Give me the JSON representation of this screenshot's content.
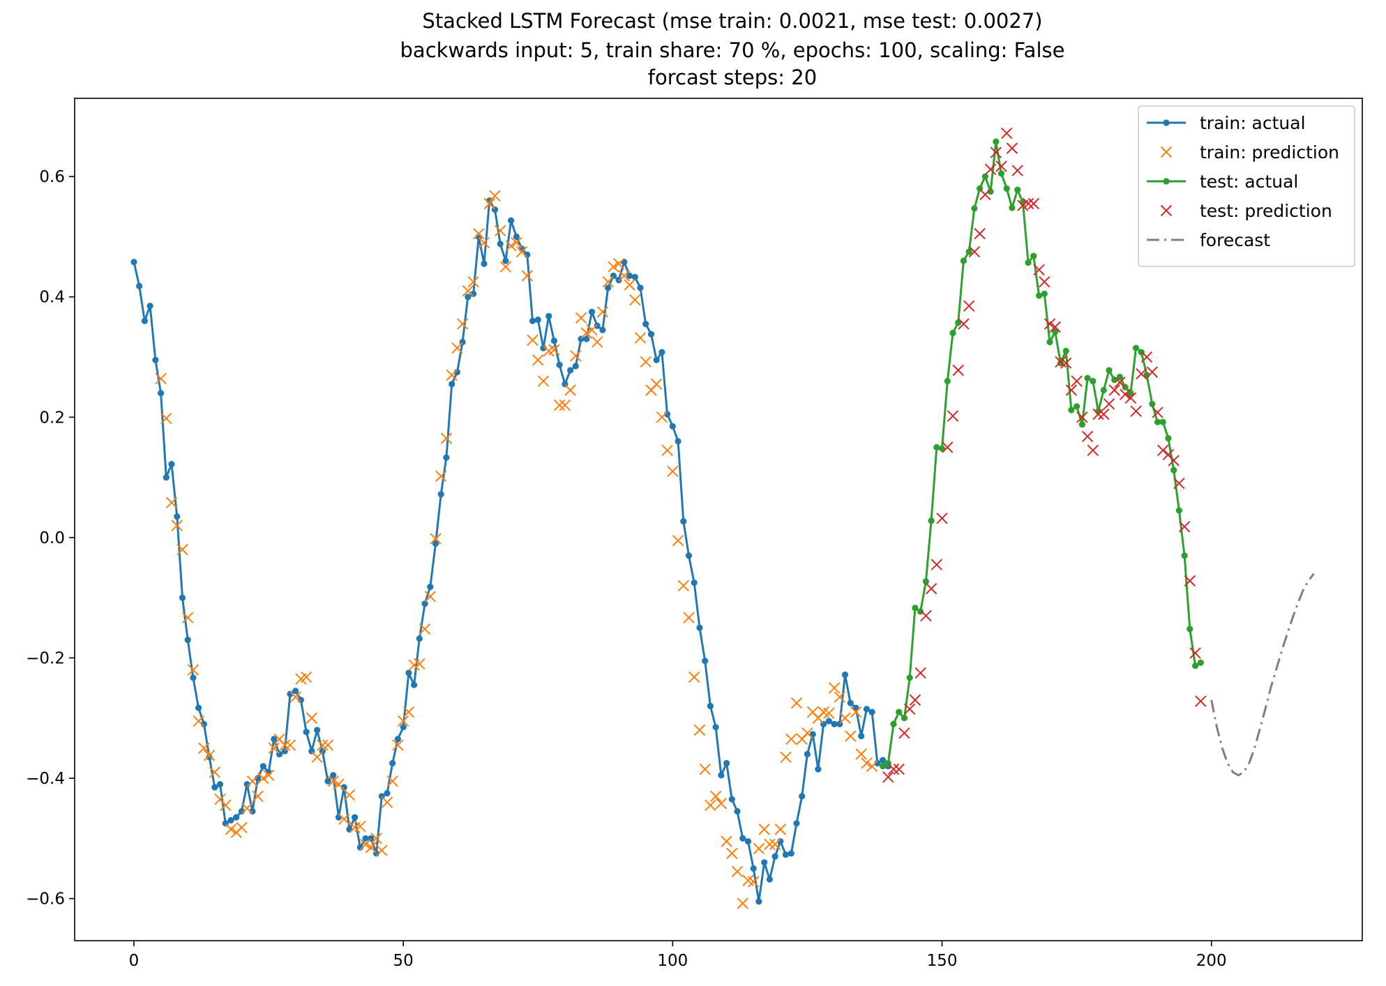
{
  "chart_data": {
    "type": "line",
    "title_lines": [
      "Stacked LSTM Forecast (mse train: 0.0021, mse test: 0.0027)",
      "backwards input: 5, train share: 70 %, epochs: 100, scaling: False",
      "forcast steps: 20"
    ],
    "xlabel": "",
    "ylabel": "",
    "xlim": [
      -11,
      228
    ],
    "ylim": [
      -0.67,
      0.73
    ],
    "xticks": [
      0,
      50,
      100,
      150,
      200
    ],
    "xtick_labels": [
      "0",
      "50",
      "100",
      "150",
      "200"
    ],
    "yticks": [
      -0.6,
      -0.4,
      -0.2,
      0.0,
      0.2,
      0.4,
      0.6
    ],
    "ytick_labels": [
      "−0.6",
      "−0.4",
      "−0.2",
      "0.0",
      "0.2",
      "0.4",
      "0.6"
    ],
    "grid": false,
    "legend_position": "top-right",
    "series": [
      {
        "name": "train: actual",
        "style": "line-dot",
        "color": "#1f77b4",
        "x_start": 0,
        "values": [
          0.458,
          0.418,
          0.36,
          0.385,
          0.295,
          0.24,
          0.1,
          0.122,
          0.035,
          -0.1,
          -0.17,
          -0.233,
          -0.283,
          -0.31,
          -0.365,
          -0.415,
          -0.41,
          -0.475,
          -0.47,
          -0.465,
          -0.455,
          -0.41,
          -0.455,
          -0.4,
          -0.38,
          -0.39,
          -0.335,
          -0.36,
          -0.355,
          -0.26,
          -0.255,
          -0.27,
          -0.323,
          -0.355,
          -0.32,
          -0.355,
          -0.405,
          -0.395,
          -0.465,
          -0.415,
          -0.485,
          -0.465,
          -0.515,
          -0.5,
          -0.5,
          -0.525,
          -0.43,
          -0.425,
          -0.375,
          -0.335,
          -0.315,
          -0.225,
          -0.245,
          -0.168,
          -0.11,
          -0.082,
          -0.01,
          0.072,
          0.133,
          0.255,
          0.275,
          0.325,
          0.4,
          0.405,
          0.5,
          0.455,
          0.56,
          0.545,
          0.488,
          0.46,
          0.527,
          0.5,
          0.48,
          0.47,
          0.36,
          0.362,
          0.315,
          0.368,
          0.327,
          0.287,
          0.255,
          0.278,
          0.285,
          0.33,
          0.33,
          0.375,
          0.352,
          0.345,
          0.415,
          0.435,
          0.428,
          0.458,
          0.435,
          0.433,
          0.415,
          0.355,
          0.338,
          0.295,
          0.308,
          0.205,
          0.185,
          0.16,
          0.027,
          -0.03,
          -0.075,
          -0.15,
          -0.205,
          -0.28,
          -0.315,
          -0.395,
          -0.375,
          -0.435,
          -0.455,
          -0.5,
          -0.505,
          -0.55,
          -0.605,
          -0.54,
          -0.568,
          -0.53,
          -0.505,
          -0.527,
          -0.525,
          -0.475,
          -0.43,
          -0.36,
          -0.327,
          -0.385,
          -0.31,
          -0.305,
          -0.31,
          -0.31,
          -0.228,
          -0.275,
          -0.283,
          -0.33,
          -0.285,
          -0.29,
          -0.375,
          -0.37,
          -0.38
        ]
      },
      {
        "name": "train: prediction",
        "style": "marker-x",
        "color": "#ff7f0e",
        "x_start": 5,
        "values": [
          0.264,
          0.198,
          0.058,
          0.02,
          -0.02,
          -0.133,
          -0.22,
          -0.305,
          -0.35,
          -0.362,
          -0.39,
          -0.435,
          -0.445,
          -0.485,
          -0.49,
          -0.482,
          -0.45,
          -0.405,
          -0.43,
          -0.4,
          -0.395,
          -0.35,
          -0.335,
          -0.345,
          -0.345,
          -0.265,
          -0.235,
          -0.232,
          -0.3,
          -0.365,
          -0.345,
          -0.345,
          -0.405,
          -0.41,
          -0.468,
          -0.428,
          -0.482,
          -0.48,
          -0.51,
          -0.515,
          -0.5,
          -0.52,
          -0.44,
          -0.405,
          -0.345,
          -0.305,
          -0.29,
          -0.212,
          -0.21,
          -0.152,
          -0.098,
          -0.002,
          0.102,
          0.165,
          0.27,
          0.315,
          0.355,
          0.41,
          0.425,
          0.505,
          0.49,
          0.555,
          0.568,
          0.51,
          0.45,
          0.485,
          0.49,
          0.475,
          0.435,
          0.328,
          0.295,
          0.26,
          0.31,
          0.312,
          0.22,
          0.22,
          0.245,
          0.302,
          0.365,
          0.34,
          0.345,
          0.325,
          0.375,
          0.425,
          0.45,
          0.455,
          0.435,
          0.42,
          0.395,
          0.332,
          0.292,
          0.245,
          0.255,
          0.2,
          0.145,
          0.11,
          -0.005,
          -0.08,
          -0.133,
          -0.232,
          -0.32,
          -0.385,
          -0.445,
          -0.43,
          -0.442,
          -0.505,
          -0.525,
          -0.555,
          -0.608,
          -0.57,
          -0.572,
          -0.517,
          -0.485,
          -0.51,
          -0.51,
          -0.485,
          -0.365,
          -0.335,
          -0.275,
          -0.335,
          -0.325,
          -0.29,
          -0.3,
          -0.29,
          -0.292,
          -0.25,
          -0.265,
          -0.3,
          -0.33,
          -0.29,
          -0.36,
          -0.375,
          -0.38
        ]
      },
      {
        "name": "test: actual",
        "style": "line-dot",
        "color": "#2ca02c",
        "x_start": 139,
        "values": [
          -0.38,
          -0.375,
          -0.31,
          -0.29,
          -0.3,
          -0.233,
          -0.117,
          -0.123,
          -0.073,
          0.028,
          0.15,
          0.148,
          0.26,
          0.34,
          0.357,
          0.46,
          0.475,
          0.547,
          0.58,
          0.6,
          0.575,
          0.658,
          0.605,
          0.58,
          0.548,
          0.578,
          0.557,
          0.457,
          0.468,
          0.402,
          0.405,
          0.325,
          0.342,
          0.29,
          0.31,
          0.212,
          0.218,
          0.188,
          0.265,
          0.26,
          0.21,
          0.245,
          0.278,
          0.262,
          0.267,
          0.25,
          0.24,
          0.315,
          0.308,
          0.27,
          0.222,
          0.192,
          0.192,
          0.165,
          0.112,
          0.045,
          -0.03,
          -0.152,
          -0.213,
          -0.208
        ]
      },
      {
        "name": "test: prediction",
        "style": "marker-x",
        "color": "#d62728",
        "x_start": 140,
        "values": [
          -0.398,
          -0.385,
          -0.385,
          -0.325,
          -0.285,
          -0.27,
          -0.225,
          -0.13,
          -0.085,
          -0.045,
          0.032,
          0.15,
          0.202,
          0.278,
          0.355,
          0.385,
          0.475,
          0.505,
          0.57,
          0.612,
          0.64,
          0.617,
          0.672,
          0.647,
          0.61,
          0.552,
          0.555,
          0.555,
          0.445,
          0.425,
          0.355,
          0.35,
          0.292,
          0.29,
          0.245,
          0.26,
          0.2,
          0.168,
          0.145,
          0.205,
          0.205,
          0.222,
          0.245,
          0.258,
          0.238,
          0.232,
          0.21,
          0.272,
          0.3,
          0.275,
          0.208,
          0.145,
          0.138,
          0.128,
          0.09,
          0.018,
          -0.072,
          -0.192,
          -0.272
        ]
      },
      {
        "name": "forecast",
        "style": "dashdot",
        "color": "#7f7f7f",
        "x": [
          200,
          201,
          202,
          203,
          204,
          205,
          206,
          207,
          208,
          209,
          210,
          211,
          212,
          213,
          214,
          215,
          216,
          217,
          218,
          219
        ],
        "values": [
          -0.27,
          -0.315,
          -0.35,
          -0.375,
          -0.39,
          -0.395,
          -0.39,
          -0.375,
          -0.35,
          -0.318,
          -0.285,
          -0.25,
          -0.22,
          -0.19,
          -0.162,
          -0.135,
          -0.11,
          -0.088,
          -0.072,
          -0.06
        ]
      }
    ]
  }
}
